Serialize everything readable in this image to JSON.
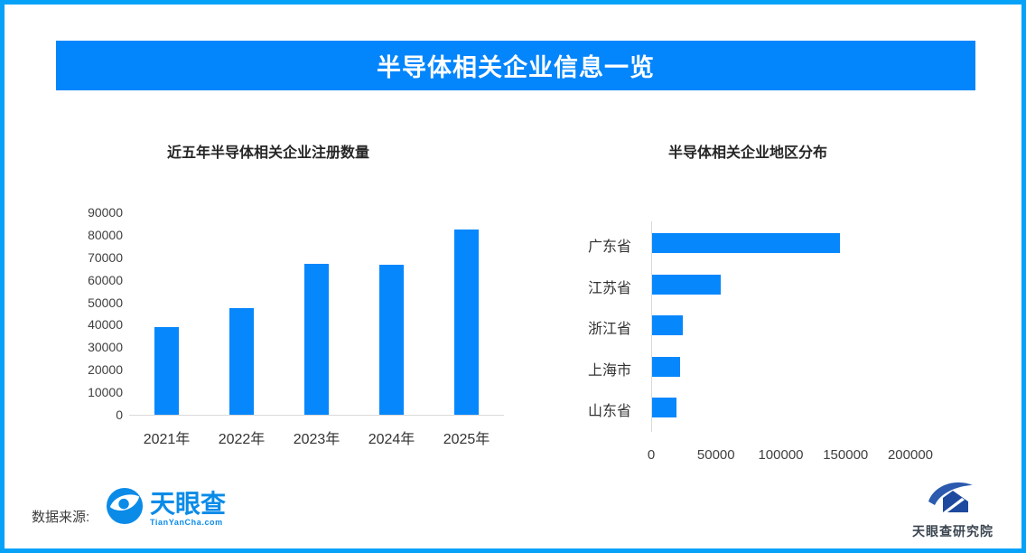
{
  "page": {
    "border_color": "#05A2F8",
    "accent_color": "#0385FC",
    "bar_color": "#0787FC",
    "tyc_blue": "#0A8BE8",
    "institute_blue": "#2B5AAE"
  },
  "header": {
    "title": "半导体相关企业信息一览"
  },
  "chart_data": [
    {
      "type": "bar",
      "orientation": "vertical",
      "title": "近五年半导体相关企业注册数量",
      "categories": [
        "2021年",
        "2022年",
        "2023年",
        "2024年",
        "2025年"
      ],
      "values": [
        39000,
        47500,
        67000,
        66500,
        82500
      ],
      "ylim": [
        0,
        90000
      ],
      "yticks": [
        0,
        10000,
        20000,
        30000,
        40000,
        50000,
        60000,
        70000,
        80000,
        90000
      ],
      "bar_color": "#0787FC",
      "grid": false,
      "legend": "none"
    },
    {
      "type": "bar",
      "orientation": "horizontal",
      "title": "半导体相关企业地区分布",
      "categories": [
        "广东省",
        "江苏省",
        "浙江省",
        "上海市",
        "山东省"
      ],
      "values": [
        145000,
        53000,
        24000,
        21500,
        18500
      ],
      "xlim": [
        0,
        200000
      ],
      "xticks": [
        0,
        50000,
        100000,
        150000,
        200000
      ],
      "bar_color": "#0787FC",
      "grid": false,
      "legend": "none"
    }
  ],
  "footer": {
    "source_label": "数据来源:",
    "logo_name": "天眼查",
    "logo_domain": "TianYanCha.com",
    "institute_name": "天眼查研究院"
  }
}
